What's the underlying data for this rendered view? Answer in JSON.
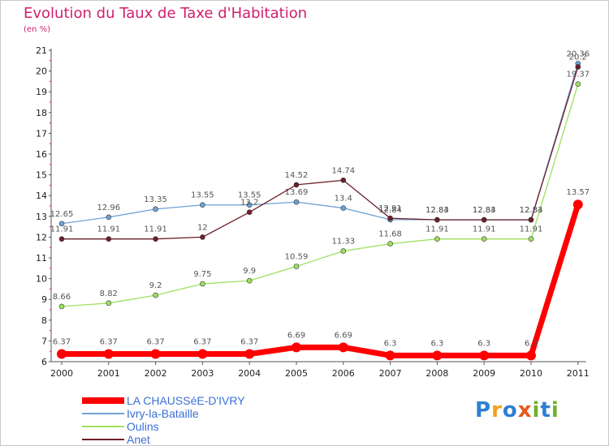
{
  "title": "Evolution du Taux de Taxe d'Habitation",
  "subtitle": "(en %)",
  "logo": {
    "letters": [
      {
        "ch": "P",
        "color": "#2f7fd1"
      },
      {
        "ch": "r",
        "color": "#f0a21b"
      },
      {
        "ch": "o",
        "color": "#2f7fd1"
      },
      {
        "ch": "x",
        "color": "#e8571c"
      },
      {
        "ch": "i",
        "color": "#6fb22e"
      },
      {
        "ch": "t",
        "color": "#2f7fd1"
      },
      {
        "ch": "i",
        "color": "#6fb22e"
      }
    ]
  },
  "chart_data": {
    "type": "line",
    "title": "Evolution du Taux de Taxe d'Habitation",
    "ylabel": "(en %)",
    "x": [
      "2000",
      "2001",
      "2002",
      "2003",
      "2004",
      "2005",
      "2006",
      "2007",
      "2008",
      "2009",
      "2010",
      "2011"
    ],
    "ylim": [
      6,
      21
    ],
    "yticks": [
      6,
      7,
      8,
      9,
      10,
      11,
      12,
      13,
      14,
      15,
      16,
      17,
      18,
      19,
      20,
      21
    ],
    "grid": false,
    "legend_position": "bottom-left",
    "series": [
      {
        "name": "LA CHAUSSéE-D'IVRY",
        "color": "#ff0000",
        "values": [
          6.37,
          6.37,
          6.37,
          6.37,
          6.37,
          6.69,
          6.69,
          6.3,
          6.3,
          6.3,
          6.3,
          13.57
        ],
        "labels": [
          "6.37",
          "6.37",
          "6.37",
          "6.37",
          "6.37",
          "6.69",
          "6.69",
          "6.3",
          "6.3",
          "6.3",
          "6.3",
          "13.57"
        ],
        "emphasis": true
      },
      {
        "name": "Ivry-la-Bataille",
        "color": "#6fa3d6",
        "values": [
          12.65,
          12.96,
          13.35,
          13.55,
          13.55,
          13.69,
          13.4,
          12.84,
          12.84,
          12.84,
          12.84,
          20.36
        ],
        "labels": [
          "12.65",
          "12.96",
          "13.35",
          "13.55",
          "13.55",
          "13.69",
          "13.4",
          "12.84",
          "12.84",
          "12.84",
          "12.84",
          "20.36"
        ]
      },
      {
        "name": "Oulins",
        "color": "#9ee05f",
        "values": [
          8.66,
          8.82,
          9.2,
          9.75,
          9.9,
          10.59,
          11.33,
          11.68,
          11.91,
          11.91,
          11.91,
          19.37
        ],
        "labels": [
          "8.66",
          "8.82",
          "9.2",
          "9.75",
          "9.9",
          "10.59",
          "11.33",
          "11.68",
          "11.91",
          "11.91",
          "11.91",
          "19.37"
        ]
      },
      {
        "name": "Anet",
        "color": "#6e1f2a",
        "values": [
          11.91,
          11.91,
          11.91,
          12,
          13.2,
          14.52,
          14.74,
          12.91,
          12.83,
          12.83,
          12.83,
          20.2
        ],
        "labels": [
          "11.91",
          "11.91",
          "11.91",
          "12",
          "13.2",
          "14.52",
          "14.74",
          "12.91",
          "12.83",
          "12.83",
          "12.83",
          "20.2"
        ]
      }
    ]
  }
}
